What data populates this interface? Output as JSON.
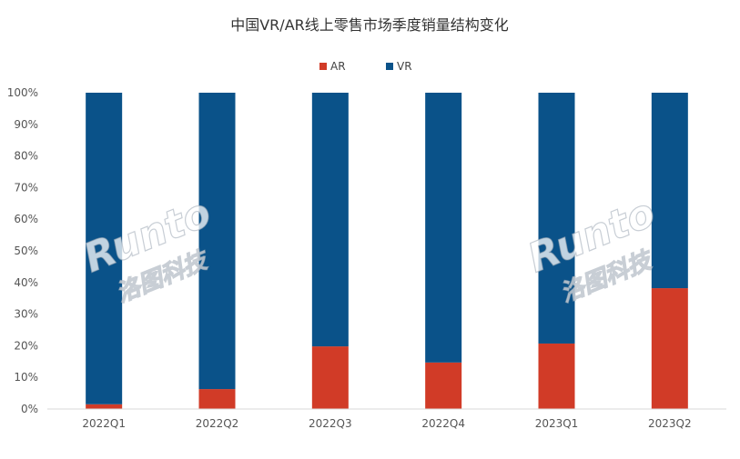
{
  "chart_data": {
    "type": "bar",
    "stacked": true,
    "title": "中国VR/AR线上零售市场季度销量结构变化",
    "categories": [
      "2022Q1",
      "2022Q2",
      "2022Q3",
      "2022Q4",
      "2023Q1",
      "2023Q2"
    ],
    "series": [
      {
        "name": "AR",
        "color": "#d13b27",
        "values": [
          1.5,
          6.3,
          19.8,
          14.7,
          20.7,
          38.2
        ]
      },
      {
        "name": "VR",
        "color": "#0a5289",
        "values": [
          98.5,
          93.7,
          80.2,
          85.3,
          79.3,
          61.8
        ]
      }
    ],
    "yticks": [
      "0%",
      "10%",
      "20%",
      "30%",
      "40%",
      "50%",
      "60%",
      "70%",
      "80%",
      "90%",
      "100%"
    ],
    "ylim": [
      0,
      100
    ],
    "legend": "top-center",
    "grid": false
  },
  "watermark": {
    "logo_text": "Runto",
    "cn_text": "洛图科技"
  }
}
